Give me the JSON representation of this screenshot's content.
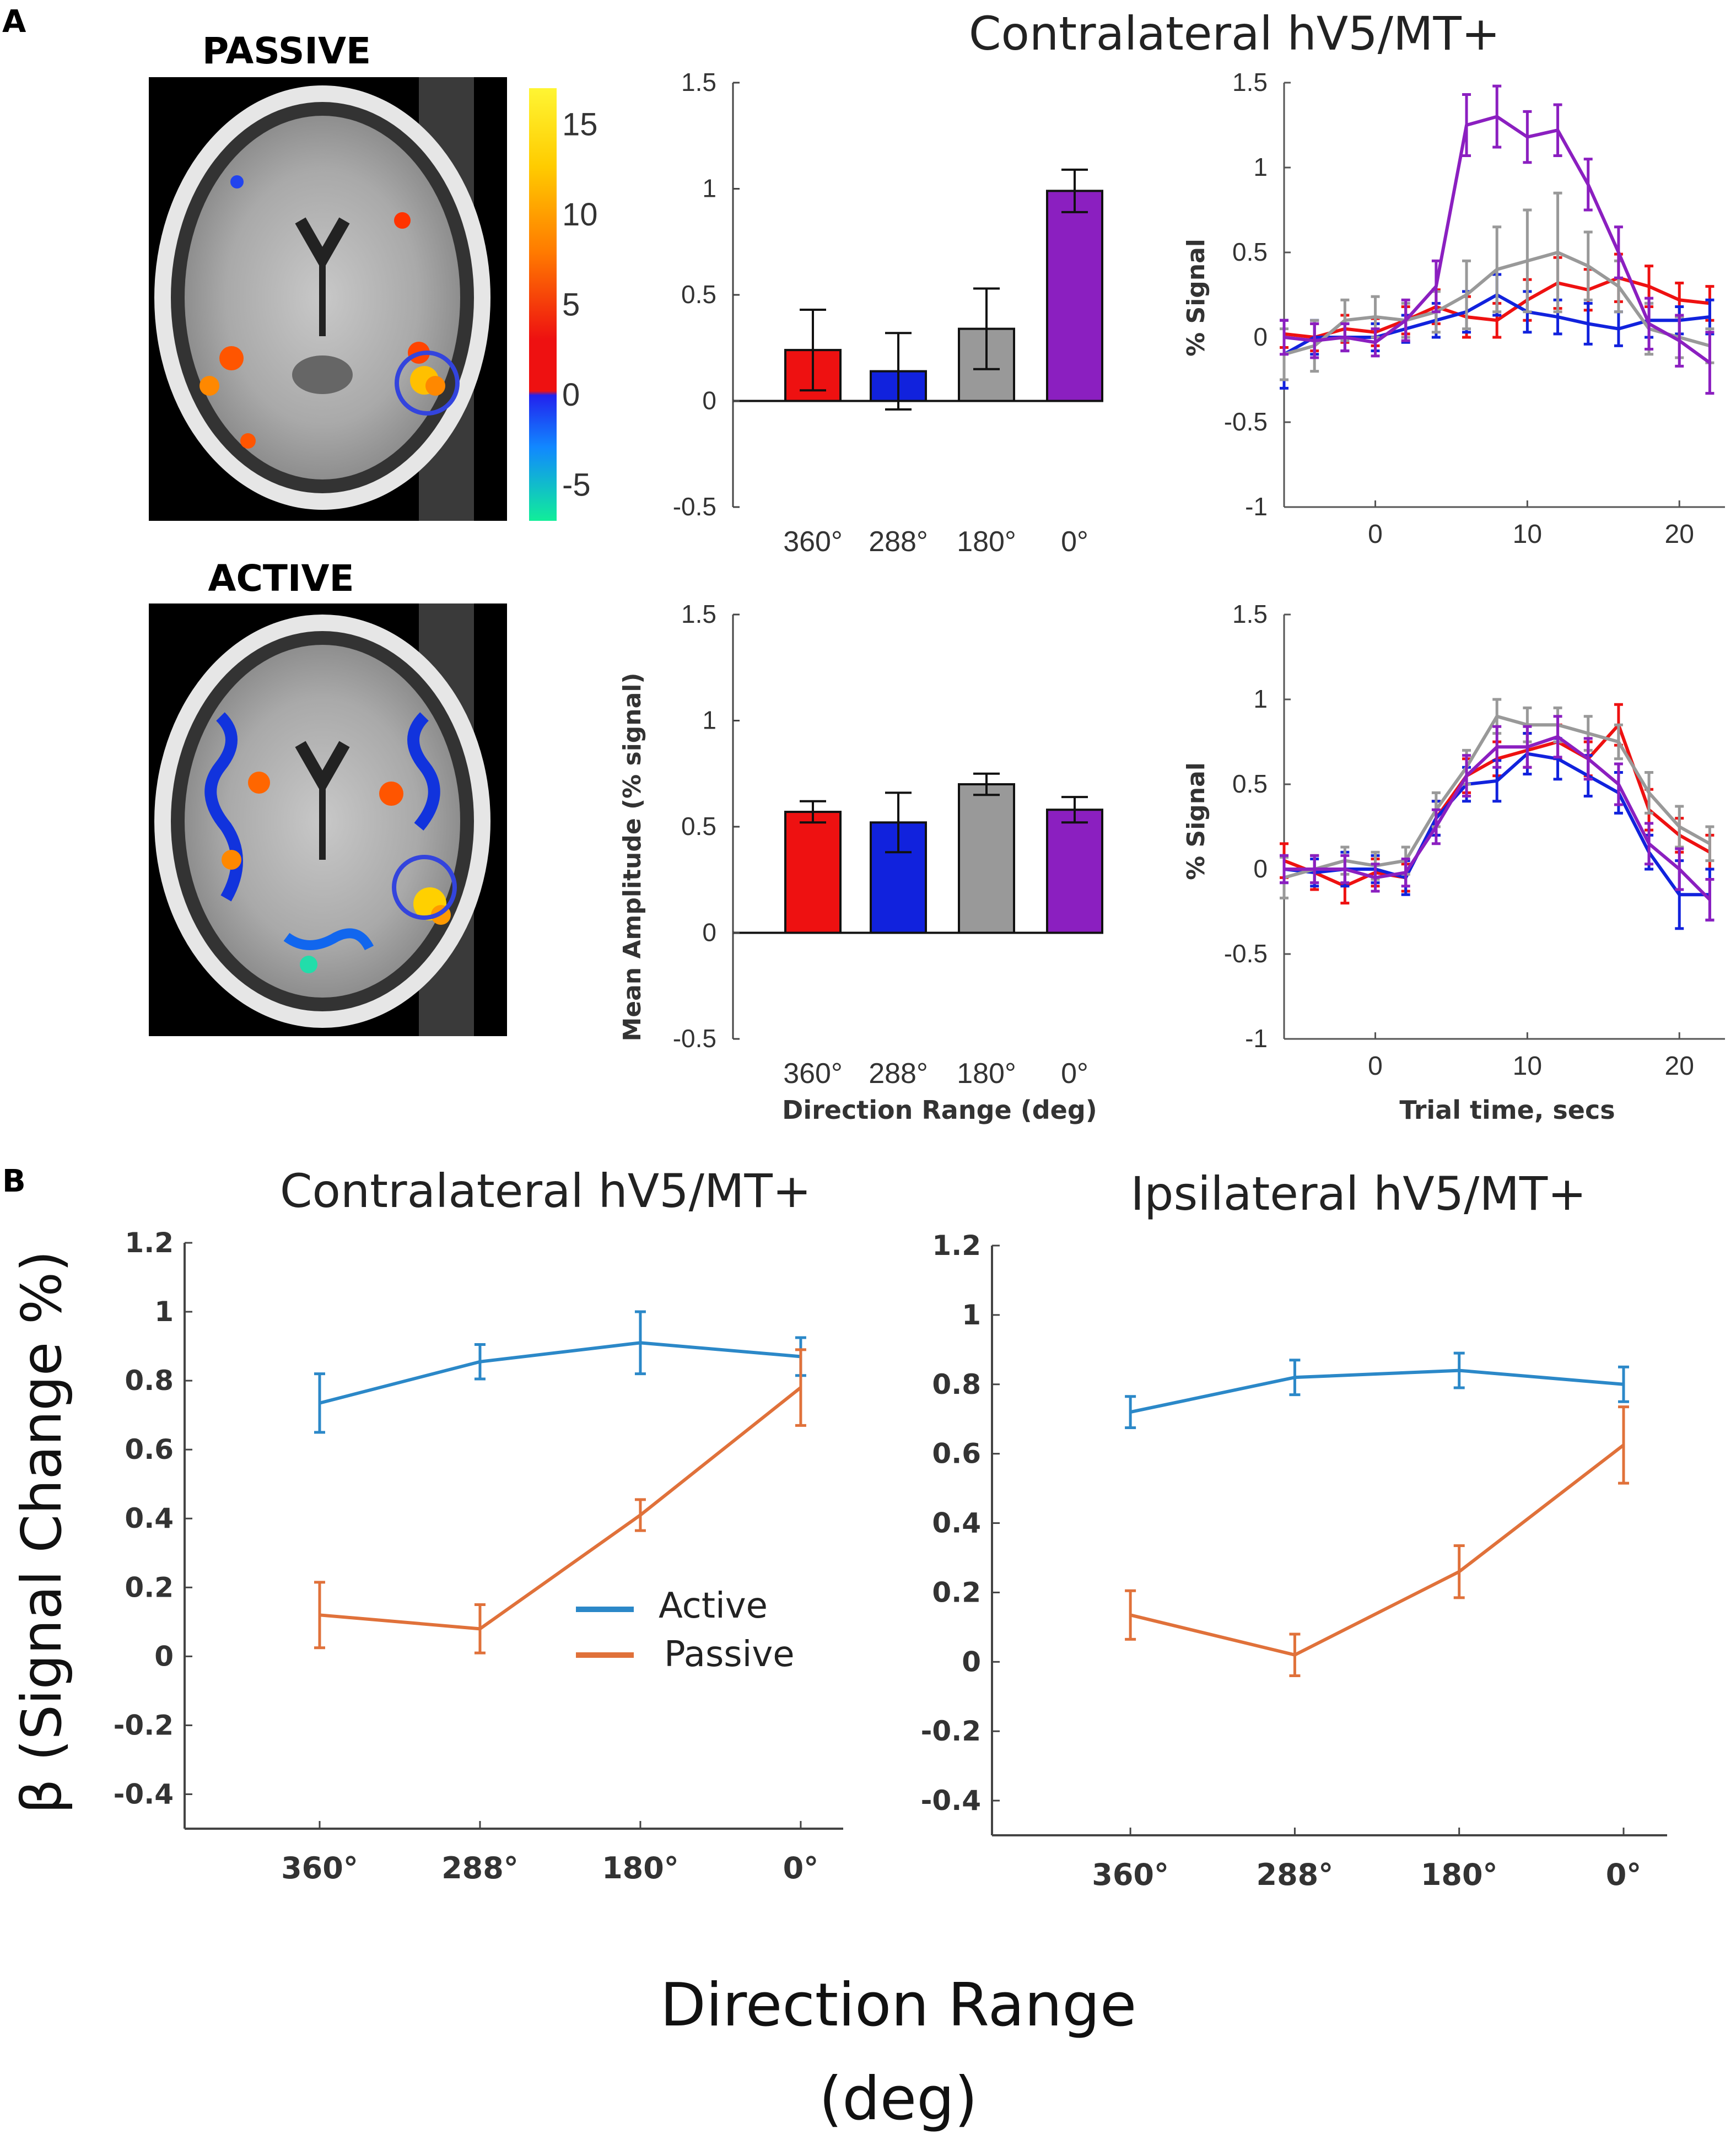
{
  "colors": {
    "c360": "#ee1111",
    "c288": "#1122dd",
    "c180": "#999999",
    "c0": "#8b1fc0",
    "active": "#2b88c8",
    "passive": "#e0713a",
    "roi": "#3344dd"
  },
  "figure": {
    "panel_a": "A",
    "panel_b": "B",
    "panel_a_title": "Contralateral hV5/MT+",
    "mri_passive_label": "PASSIVE",
    "mri_active_label": "ACTIVE",
    "colorbar_ticks": [
      "15",
      "10",
      "5",
      "0",
      "-5"
    ],
    "colorbar_values": [
      15,
      10,
      5,
      0,
      -5
    ],
    "colorbar_range": [
      -7,
      17
    ],
    "legend_active": "Active",
    "legend_passive": "Passive",
    "b_ylabel": "β (Signal Change %)",
    "b_xlabel_line1": "Direction Range",
    "b_xlabel_line2": "(deg)"
  },
  "chart_data": [
    {
      "id": "bar_passive",
      "type": "bar",
      "title": "Contralateral hV5/MT+",
      "categories": [
        "360°",
        "288°",
        "180°",
        "0°"
      ],
      "values": [
        0.24,
        0.14,
        0.34,
        0.99
      ],
      "errors": [
        0.19,
        0.18,
        0.19,
        0.1
      ],
      "ylim": [
        -0.5,
        1.5
      ],
      "yticks": [
        -0.5,
        0,
        0.5,
        1,
        1.5
      ],
      "ytick_labels": [
        "-0.5",
        "0",
        "0.5",
        "1",
        "1.5"
      ],
      "xlabel": "",
      "ylabel": ""
    },
    {
      "id": "bar_active",
      "type": "bar",
      "categories": [
        "360°",
        "288°",
        "180°",
        "0°"
      ],
      "values": [
        0.57,
        0.52,
        0.7,
        0.58
      ],
      "errors": [
        0.05,
        0.14,
        0.05,
        0.06
      ],
      "ylim": [
        -0.5,
        1.5
      ],
      "yticks": [
        -0.5,
        0,
        0.5,
        1,
        1.5
      ],
      "ytick_labels": [
        "-0.5",
        "0",
        "0.5",
        "1",
        "1.5"
      ],
      "xlabel": "Direction Range (deg)",
      "ylabel": "Mean Amplitude (% signal)"
    },
    {
      "id": "ts_passive",
      "type": "line",
      "x": [
        -6,
        -4,
        -2,
        0,
        2,
        4,
        6,
        8,
        10,
        12,
        14,
        16,
        18,
        20,
        22
      ],
      "xlim": [
        -6,
        23
      ],
      "ylim": [
        -1,
        1.5
      ],
      "xticks": [
        0,
        10,
        20
      ],
      "xtick_labels": [
        "0",
        "10",
        "20"
      ],
      "yticks": [
        -1,
        -0.5,
        0,
        0.5,
        1,
        1.5
      ],
      "ytick_labels": [
        "-1",
        "-0.5",
        "0",
        "0.5",
        "1",
        "1.5"
      ],
      "ylabel": "% Signal",
      "xlabel": "",
      "series": [
        {
          "name": "360°",
          "color": "#ee1111",
          "values": [
            0.02,
            0.0,
            0.05,
            0.03,
            0.1,
            0.18,
            0.12,
            0.1,
            0.22,
            0.32,
            0.28,
            0.35,
            0.3,
            0.22,
            0.2
          ],
          "errors": [
            0.08,
            0.08,
            0.08,
            0.08,
            0.08,
            0.1,
            0.12,
            0.1,
            0.12,
            0.15,
            0.12,
            0.14,
            0.12,
            0.1,
            0.1
          ]
        },
        {
          "name": "288°",
          "color": "#1122dd",
          "values": [
            -0.1,
            0.0,
            0.0,
            0.0,
            0.05,
            0.1,
            0.15,
            0.25,
            0.15,
            0.12,
            0.08,
            0.05,
            0.1,
            0.1,
            0.12
          ],
          "errors": [
            0.2,
            0.1,
            0.08,
            0.08,
            0.08,
            0.1,
            0.12,
            0.12,
            0.12,
            0.1,
            0.12,
            0.1,
            0.1,
            0.08,
            0.1
          ]
        },
        {
          "name": "180°",
          "color": "#999999",
          "values": [
            -0.1,
            -0.05,
            0.1,
            0.12,
            0.1,
            0.15,
            0.25,
            0.4,
            0.45,
            0.5,
            0.42,
            0.3,
            0.05,
            0.0,
            -0.05
          ],
          "errors": [
            0.15,
            0.15,
            0.12,
            0.12,
            0.1,
            0.12,
            0.2,
            0.25,
            0.3,
            0.35,
            0.2,
            0.15,
            0.15,
            0.12,
            0.1
          ]
        },
        {
          "name": "0°",
          "color": "#8b1fc0",
          "values": [
            0.0,
            -0.02,
            0.0,
            -0.03,
            0.1,
            0.3,
            1.25,
            1.3,
            1.18,
            1.22,
            0.9,
            0.5,
            0.08,
            -0.02,
            -0.15
          ],
          "errors": [
            0.1,
            0.1,
            0.08,
            0.08,
            0.12,
            0.15,
            0.18,
            0.18,
            0.15,
            0.15,
            0.15,
            0.15,
            0.15,
            0.15,
            0.18
          ]
        }
      ]
    },
    {
      "id": "ts_active",
      "type": "line",
      "x": [
        -6,
        -4,
        -2,
        0,
        2,
        4,
        6,
        8,
        10,
        12,
        14,
        16,
        18,
        20,
        22
      ],
      "xlim": [
        -6,
        23
      ],
      "ylim": [
        -1,
        1.5
      ],
      "xticks": [
        0,
        10,
        20
      ],
      "xtick_labels": [
        "0",
        "10",
        "20"
      ],
      "yticks": [
        -1,
        -0.5,
        0,
        0.5,
        1,
        1.5
      ],
      "ytick_labels": [
        "-1",
        "-0.5",
        "0",
        "0.5",
        "1",
        "1.5"
      ],
      "ylabel": "% Signal",
      "xlabel": "Trial time, secs",
      "series": [
        {
          "name": "360°",
          "color": "#ee1111",
          "values": [
            0.05,
            -0.02,
            -0.1,
            -0.02,
            -0.05,
            0.3,
            0.55,
            0.65,
            0.7,
            0.75,
            0.65,
            0.85,
            0.35,
            0.2,
            0.1
          ],
          "errors": [
            0.1,
            0.1,
            0.1,
            0.08,
            0.08,
            0.1,
            0.1,
            0.1,
            0.1,
            0.1,
            0.1,
            0.12,
            0.12,
            0.1,
            0.1
          ]
        },
        {
          "name": "288°",
          "color": "#1122dd",
          "values": [
            0.0,
            -0.02,
            0.0,
            0.0,
            -0.05,
            0.3,
            0.5,
            0.52,
            0.68,
            0.65,
            0.55,
            0.45,
            0.1,
            -0.15,
            -0.15
          ],
          "errors": [
            0.08,
            0.08,
            0.1,
            0.08,
            0.1,
            0.1,
            0.1,
            0.12,
            0.12,
            0.12,
            0.12,
            0.12,
            0.1,
            0.2,
            0.15
          ]
        },
        {
          "name": "180°",
          "color": "#999999",
          "values": [
            -0.05,
            0.0,
            0.05,
            0.02,
            0.05,
            0.35,
            0.6,
            0.9,
            0.85,
            0.85,
            0.8,
            0.75,
            0.45,
            0.25,
            0.15
          ],
          "errors": [
            0.12,
            0.08,
            0.08,
            0.08,
            0.08,
            0.1,
            0.1,
            0.1,
            0.1,
            0.1,
            0.1,
            0.1,
            0.12,
            0.12,
            0.1
          ]
        },
        {
          "name": "0°",
          "color": "#8b1fc0",
          "values": [
            0.0,
            0.0,
            0.0,
            -0.05,
            -0.02,
            0.25,
            0.55,
            0.72,
            0.72,
            0.78,
            0.65,
            0.5,
            0.15,
            0.0,
            -0.18
          ],
          "errors": [
            0.08,
            0.08,
            0.08,
            0.08,
            0.08,
            0.1,
            0.12,
            0.12,
            0.12,
            0.12,
            0.12,
            0.12,
            0.12,
            0.12,
            0.12
          ]
        }
      ]
    },
    {
      "id": "b_contra",
      "type": "line",
      "title": "Contralateral hV5/MT+",
      "categories": [
        "360°",
        "288°",
        "180°",
        "0°"
      ],
      "ylim": [
        -0.5,
        1.2
      ],
      "yticks": [
        -0.4,
        -0.2,
        0,
        0.2,
        0.4,
        0.6,
        0.8,
        1,
        1.2
      ],
      "ytick_labels": [
        "-0.4",
        "-0.2",
        "0",
        "0.2",
        "0.4",
        "0.6",
        "0.8",
        "1",
        "1.2"
      ],
      "series": [
        {
          "name": "Active",
          "color": "#2b88c8",
          "values": [
            0.735,
            0.855,
            0.91,
            0.87
          ],
          "errors": [
            0.085,
            0.05,
            0.09,
            0.055
          ]
        },
        {
          "name": "Passive",
          "color": "#e0713a",
          "values": [
            0.12,
            0.08,
            0.41,
            0.78
          ],
          "errors": [
            0.095,
            0.07,
            0.045,
            0.11
          ]
        }
      ]
    },
    {
      "id": "b_ipsi",
      "type": "line",
      "title": "Ipsilateral hV5/MT+",
      "categories": [
        "360°",
        "288°",
        "180°",
        "0°"
      ],
      "ylim": [
        -0.5,
        1.2
      ],
      "yticks": [
        -0.4,
        -0.2,
        0,
        0.2,
        0.4,
        0.6,
        0.8,
        1,
        1.2
      ],
      "ytick_labels": [
        "-0.4",
        "-0.2",
        "0",
        "0.2",
        "0.4",
        "0.6",
        "0.8",
        "1",
        "1.2"
      ],
      "series": [
        {
          "name": "Active",
          "color": "#2b88c8",
          "values": [
            0.72,
            0.82,
            0.84,
            0.8
          ],
          "errors": [
            0.045,
            0.05,
            0.05,
            0.05
          ]
        },
        {
          "name": "Passive",
          "color": "#e0713a",
          "values": [
            0.135,
            0.02,
            0.26,
            0.625
          ],
          "errors": [
            0.07,
            0.06,
            0.075,
            0.11
          ]
        }
      ]
    }
  ]
}
